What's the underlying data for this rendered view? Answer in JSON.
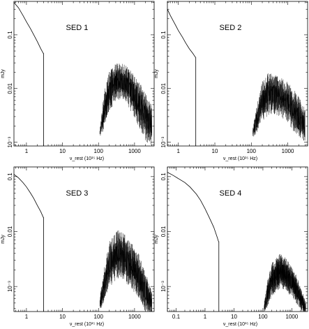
{
  "chart_data": [
    {
      "type": "line",
      "title": "SED 1",
      "xlabel": "ν_rest (10¹⁵ Hz)",
      "ylabel": "mJy",
      "xscale": "log",
      "yscale": "log",
      "xlim": [
        0.45,
        3500
      ],
      "ylim": [
        0.00085,
        0.42
      ],
      "xticks": [
        {
          "v": 1,
          "label": "1"
        },
        {
          "v": 10,
          "label": "10"
        },
        {
          "v": 100,
          "label": "100"
        },
        {
          "v": 1000,
          "label": "1000"
        }
      ],
      "yticks": [
        {
          "v": 0.1,
          "label": "0.1"
        },
        {
          "v": 0.01,
          "label": "0.01"
        },
        {
          "v": 0.001,
          "label": "10⁻³"
        }
      ],
      "continuum": {
        "x": [
          0.45,
          0.6,
          0.8,
          1.0,
          1.3,
          1.6,
          2.0,
          2.5,
          2.95
        ],
        "y": [
          0.4,
          0.32,
          0.23,
          0.175,
          0.13,
          0.1,
          0.075,
          0.055,
          0.045
        ]
      },
      "cutoff_x": 3.0,
      "band": {
        "x": [
          110,
          150,
          200,
          300,
          400,
          600,
          900,
          1400,
          2000,
          3000
        ],
        "center": [
          0.0015,
          0.0045,
          0.009,
          0.013,
          0.014,
          0.012,
          0.008,
          0.005,
          0.003,
          0.002
        ],
        "spread": [
          1.2,
          2.2,
          2.3,
          2.3,
          2.2,
          2.2,
          2.5,
          2.8,
          2.8,
          2.5
        ]
      }
    },
    {
      "type": "line",
      "title": "SED 2",
      "xlabel": "ν_rest (10¹⁵ Hz)",
      "ylabel": "mJy",
      "xscale": "log",
      "yscale": "log",
      "xlim": [
        0.5,
        3500
      ],
      "ylim": [
        0.00085,
        0.42
      ],
      "xticks": [
        {
          "v": 1,
          "label": "1"
        },
        {
          "v": 10,
          "label": "10"
        },
        {
          "v": 100,
          "label": "100"
        },
        {
          "v": 1000,
          "label": "1000"
        }
      ],
      "yticks": [
        {
          "v": 0.1,
          "label": "0.1"
        },
        {
          "v": 0.01,
          "label": "0.01"
        },
        {
          "v": 0.001,
          "label": "10⁻³"
        }
      ],
      "continuum": {
        "x": [
          0.5,
          0.6,
          0.8,
          1.0,
          1.3,
          1.6,
          2.0,
          2.5,
          2.95
        ],
        "y": [
          0.3,
          0.23,
          0.16,
          0.12,
          0.09,
          0.07,
          0.055,
          0.045,
          0.038
        ]
      },
      "cutoff_x": 3.0,
      "band": {
        "x": [
          110,
          150,
          200,
          300,
          400,
          600,
          900,
          1400,
          2000,
          3000
        ],
        "center": [
          0.0015,
          0.003,
          0.006,
          0.008,
          0.008,
          0.007,
          0.006,
          0.004,
          0.003,
          0.002
        ],
        "spread": [
          1.2,
          2.0,
          2.4,
          2.5,
          2.4,
          2.3,
          2.4,
          2.5,
          2.4,
          2.0
        ]
      }
    },
    {
      "type": "line",
      "title": "SED 3",
      "xlabel": "ν_rest (10¹⁵ Hz)",
      "ylabel": "mJy",
      "xscale": "log",
      "yscale": "log",
      "xlim": [
        0.45,
        3500
      ],
      "ylim": [
        0.00035,
        0.15
      ],
      "xticks": [
        {
          "v": 1,
          "label": "1"
        },
        {
          "v": 10,
          "label": "10"
        },
        {
          "v": 100,
          "label": "100"
        },
        {
          "v": 1000,
          "label": "1000"
        }
      ],
      "yticks": [
        {
          "v": 0.1,
          "label": "0.1"
        },
        {
          "v": 0.01,
          "label": "0.01"
        },
        {
          "v": 0.001,
          "label": "10⁻³"
        }
      ],
      "continuum": {
        "x": [
          0.45,
          0.6,
          0.8,
          1.0,
          1.3,
          1.6,
          2.0,
          2.5,
          2.95
        ],
        "y": [
          0.11,
          0.095,
          0.078,
          0.065,
          0.05,
          0.04,
          0.03,
          0.023,
          0.018
        ]
      },
      "cutoff_x": 3.0,
      "band": {
        "x": [
          110,
          150,
          200,
          300,
          400,
          600,
          900,
          1400,
          2000,
          3000
        ],
        "center": [
          0.0005,
          0.0012,
          0.0025,
          0.0035,
          0.004,
          0.003,
          0.0022,
          0.0014,
          0.0008,
          0.0005
        ],
        "spread": [
          1.3,
          2.2,
          2.6,
          2.8,
          2.8,
          2.7,
          2.7,
          2.6,
          2.3,
          1.8
        ]
      }
    },
    {
      "type": "line",
      "title": "SED 4",
      "xlabel": "ν_rest (10¹⁵ Hz)",
      "ylabel": "mJy",
      "xscale": "log",
      "yscale": "log",
      "xlim": [
        0.05,
        3500
      ],
      "ylim": [
        0.00035,
        0.15
      ],
      "xticks": [
        {
          "v": 0.1,
          "label": "0.1"
        },
        {
          "v": 1,
          "label": "1"
        },
        {
          "v": 10,
          "label": "10"
        },
        {
          "v": 100,
          "label": "100"
        },
        {
          "v": 1000,
          "label": "1000"
        }
      ],
      "yticks": [
        {
          "v": 0.1,
          "label": "0.1"
        },
        {
          "v": 0.01,
          "label": "0.01"
        },
        {
          "v": 0.001,
          "label": "10⁻³"
        }
      ],
      "continuum": {
        "x": [
          0.05,
          0.08,
          0.12,
          0.2,
          0.3,
          0.5,
          0.7,
          1.0,
          1.4,
          2.0,
          2.6,
          2.95
        ],
        "y": [
          0.12,
          0.105,
          0.092,
          0.078,
          0.065,
          0.048,
          0.037,
          0.026,
          0.018,
          0.012,
          0.008,
          0.0065
        ]
      },
      "cutoff_x": 3.0,
      "band": {
        "x": [
          110,
          150,
          200,
          300,
          400,
          600,
          900,
          1400,
          2000,
          3000
        ],
        "center": [
          0.0004,
          0.0008,
          0.0013,
          0.0017,
          0.0019,
          0.0017,
          0.0013,
          0.0009,
          0.0006,
          0.0004
        ],
        "spread": [
          1.2,
          1.8,
          2.0,
          2.1,
          2.1,
          2.0,
          1.9,
          1.8,
          1.6,
          1.4
        ]
      }
    }
  ]
}
